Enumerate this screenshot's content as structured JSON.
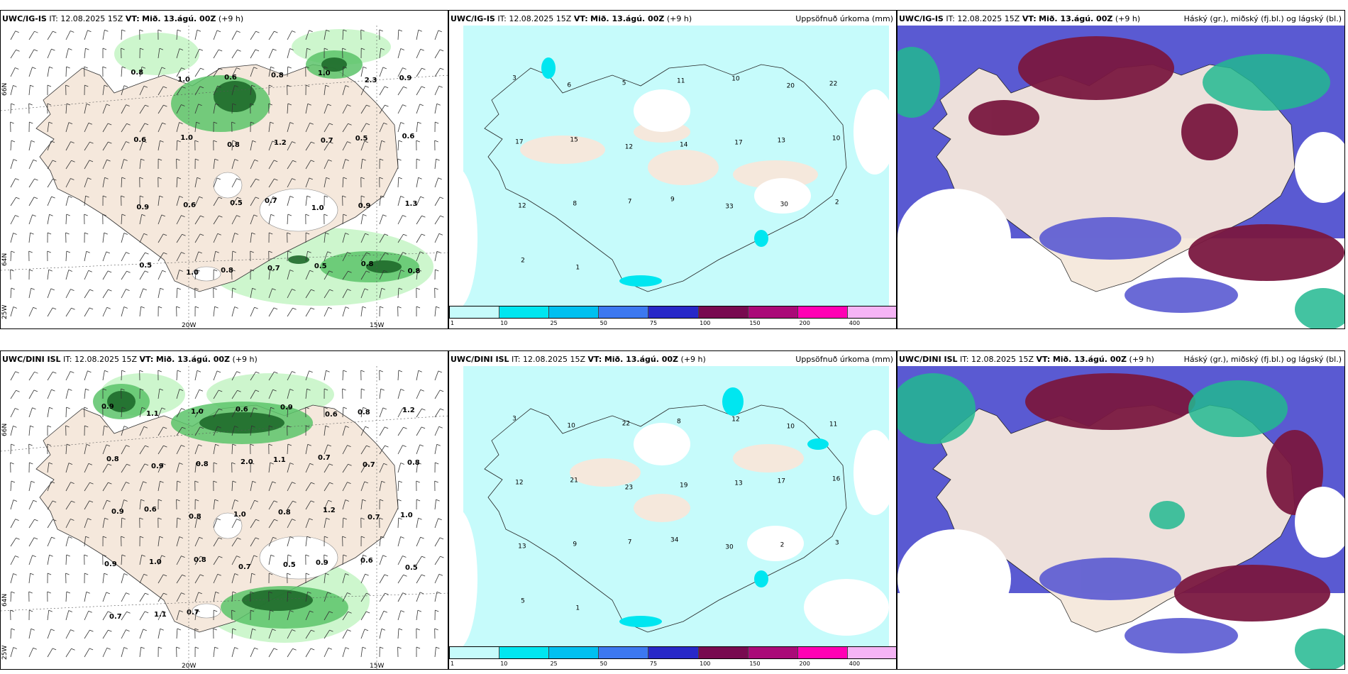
{
  "common": {
    "issue": "IT: 12.08.2025 15Z",
    "valid_prefix": "VT:",
    "valid": "Mið. 13.ágú. 00Z",
    "lead": "(+9 h)"
  },
  "rows": [
    {
      "model": "UWC/IG-IS",
      "key": "top"
    },
    {
      "model": "UWC/DINI ISL",
      "key": "bottom"
    }
  ],
  "panels": {
    "precip_title": "Uppsöfnuð úrkoma (mm)",
    "cloud_title": "Háský (gr.), miðský (fj.bl.) og lágský (bl.)"
  },
  "axes": {
    "lat_66": "66N",
    "lat_64": "64N",
    "lon_20": "20W",
    "lon_15": "15W",
    "lon_25": "25W"
  },
  "colorbar": {
    "labels": [
      "1",
      "10",
      "25",
      "50",
      "75",
      "100",
      "150",
      "200",
      "400"
    ],
    "colors": [
      "#c6fbfb",
      "#00e6f0",
      "#00c0f0",
      "#3c78f0",
      "#2828c8",
      "#780a50",
      "#aa0a78",
      "#ff00b4",
      "#f5b4f5"
    ]
  },
  "colors": {
    "land": "#f5e8dc",
    "sea_light_green": "#c8f5c8",
    "green_mid": "#5cc46a",
    "green_dark": "#1e6a2a",
    "cyan_light": "#c6fbfb",
    "purple": "#5a5ad2",
    "maroon": "#7a1840",
    "teal": "#22b890"
  },
  "top_wind_labels": [
    "0.8",
    "1.0",
    "0.6",
    "0.8",
    "1.0",
    "2.3",
    "0.9",
    "0.6",
    "1.0",
    "0.8",
    "1.2",
    "0.7",
    "0.5",
    "0.6",
    "0.9",
    "0.6",
    "0.5",
    "0.7",
    "1.0",
    "0.9",
    "1.3",
    "0.5",
    "1.0",
    "0.8",
    "0.7",
    "0.5",
    "0.8",
    "0.8"
  ],
  "bottom_wind_labels": [
    "0.9",
    "1.1",
    "1.0",
    "0.6",
    "0.9",
    "0.6",
    "0.8",
    "1.2",
    "0.8",
    "0.9",
    "0.8",
    "2.0",
    "1.1",
    "0.7",
    "0.7",
    "0.8",
    "0.9",
    "0.6",
    "0.8",
    "1.0",
    "0.8",
    "1.2",
    "0.7",
    "1.0",
    "0.9",
    "1.0",
    "0.8",
    "0.7",
    "0.5",
    "0.9",
    "0.6",
    "0.5",
    "0.7",
    "1.1",
    "0.7"
  ],
  "top_precip_labels": [
    "3",
    "6",
    "5",
    "11",
    "10",
    "20",
    "22",
    "17",
    "15",
    "12",
    "14",
    "17",
    "13",
    "10",
    "12",
    "8",
    "7",
    "9",
    "33",
    "30",
    "2",
    "2",
    "1"
  ],
  "bottom_precip_labels": [
    "3",
    "10",
    "22",
    "8",
    "12",
    "10",
    "11",
    "12",
    "21",
    "23",
    "19",
    "13",
    "17",
    "16",
    "13",
    "9",
    "7",
    "34",
    "30",
    "2",
    "3",
    "5",
    "1"
  ]
}
